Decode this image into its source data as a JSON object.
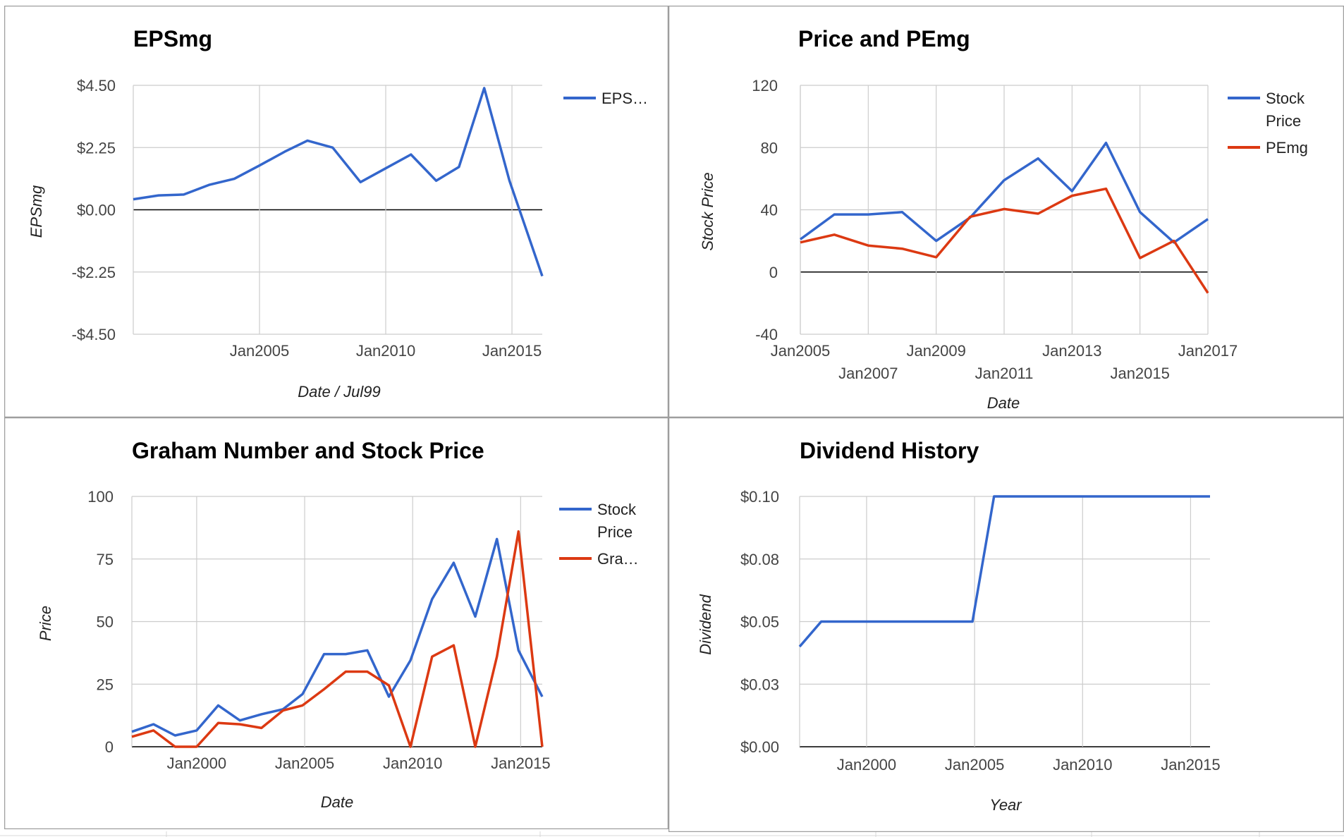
{
  "colors": {
    "blue": "#3366cc",
    "red": "#dc3912",
    "grid": "#cccccc",
    "zero": "#000000"
  },
  "chart_data": [
    {
      "type": "line",
      "title": "EPSmg",
      "xlabel": "Date / Jul99",
      "ylabel": "EPSmg",
      "x_ticks": [
        {
          "value": 2005,
          "label": "Jan2005"
        },
        {
          "value": 2010,
          "label": "Jan2010"
        },
        {
          "value": 2015,
          "label": "Jan2015"
        }
      ],
      "y_ticks": [
        {
          "value": 4.5,
          "label": "$4.50"
        },
        {
          "value": 2.25,
          "label": "$2.25"
        },
        {
          "value": 0,
          "label": "$0.00"
        },
        {
          "value": -2.25,
          "label": "-$2.25"
        },
        {
          "value": -4.5,
          "label": "-$4.50"
        }
      ],
      "xlim": [
        2000.0,
        2016.2
      ],
      "ylim": [
        -4.5,
        4.5
      ],
      "grid": true,
      "legend_position": "right",
      "series": [
        {
          "name": "EPS…",
          "color": "#3366cc",
          "points": [
            [
              2000.0,
              0.38
            ],
            [
              2001.0,
              0.52
            ],
            [
              2002.0,
              0.55
            ],
            [
              2003.0,
              0.9
            ],
            [
              2004.0,
              1.12
            ],
            [
              2005.0,
              1.6
            ],
            [
              2006.0,
              2.1
            ],
            [
              2006.9,
              2.5
            ],
            [
              2007.9,
              2.25
            ],
            [
              2009.0,
              1.0
            ],
            [
              2010.0,
              1.5
            ],
            [
              2011.0,
              2.0
            ],
            [
              2012.0,
              1.05
            ],
            [
              2012.9,
              1.55
            ],
            [
              2013.9,
              4.4
            ],
            [
              2014.9,
              1.05
            ],
            [
              2016.2,
              -2.4
            ]
          ]
        }
      ]
    },
    {
      "type": "line",
      "title": "Price and PEmg",
      "xlabel": "Date",
      "ylabel": "Stock Price",
      "x_ticks_row1": [
        {
          "value": 2005,
          "label": "Jan2005"
        },
        {
          "value": 2009,
          "label": "Jan2009"
        },
        {
          "value": 2013,
          "label": "Jan2013"
        },
        {
          "value": 2017,
          "label": "Jan2017"
        }
      ],
      "x_ticks_row2": [
        {
          "value": 2007,
          "label": "Jan2007"
        },
        {
          "value": 2011,
          "label": "Jan2011"
        },
        {
          "value": 2015,
          "label": "Jan2015"
        }
      ],
      "y_ticks": [
        {
          "value": 120,
          "label": "120"
        },
        {
          "value": 80,
          "label": "80"
        },
        {
          "value": 40,
          "label": "40"
        },
        {
          "value": 0,
          "label": "0"
        },
        {
          "value": -40,
          "label": "-40"
        }
      ],
      "xlim": [
        2005,
        2017
      ],
      "ylim": [
        -40,
        120
      ],
      "grid": true,
      "legend_position": "right",
      "series": [
        {
          "name": "Stock Price",
          "color": "#3366cc",
          "points": [
            [
              2005,
              21
            ],
            [
              2006,
              37
            ],
            [
              2007,
              37
            ],
            [
              2008,
              38.5
            ],
            [
              2009,
              20
            ],
            [
              2010,
              35
            ],
            [
              2011,
              59
            ],
            [
              2012,
              73
            ],
            [
              2013,
              52
            ],
            [
              2014,
              83
            ],
            [
              2015,
              38.5
            ],
            [
              2016,
              19
            ],
            [
              2017,
              34
            ]
          ]
        },
        {
          "name": "PEmg",
          "color": "#dc3912",
          "points": [
            [
              2005,
              19
            ],
            [
              2006,
              24
            ],
            [
              2007,
              17
            ],
            [
              2008,
              15
            ],
            [
              2009,
              9.5
            ],
            [
              2010,
              35.5
            ],
            [
              2011,
              40.5
            ],
            [
              2012,
              37.5
            ],
            [
              2013,
              49
            ],
            [
              2014,
              53.5
            ],
            [
              2015,
              9
            ],
            [
              2016,
              20
            ],
            [
              2017,
              -13.5
            ]
          ]
        }
      ]
    },
    {
      "type": "line",
      "title": "Graham Number and Stock Price",
      "xlabel": "Date",
      "ylabel": "Price",
      "x_ticks": [
        {
          "value": 2000,
          "label": "Jan2000"
        },
        {
          "value": 2005,
          "label": "Jan2005"
        },
        {
          "value": 2010,
          "label": "Jan2010"
        },
        {
          "value": 2015,
          "label": "Jan2015"
        }
      ],
      "y_ticks": [
        {
          "value": 100,
          "label": "100"
        },
        {
          "value": 75,
          "label": "75"
        },
        {
          "value": 50,
          "label": "50"
        },
        {
          "value": 25,
          "label": "25"
        },
        {
          "value": 0,
          "label": "0"
        }
      ],
      "xlim": [
        1997.0,
        2016.0
      ],
      "ylim": [
        0,
        100
      ],
      "grid": true,
      "legend_position": "right",
      "series": [
        {
          "name": "Stock Price",
          "color": "#3366cc",
          "points": [
            [
              1997.0,
              6
            ],
            [
              1998.0,
              9
            ],
            [
              1999.0,
              4.5
            ],
            [
              2000.0,
              6.5
            ],
            [
              2001.0,
              16.5
            ],
            [
              2002.0,
              10.5
            ],
            [
              2003.0,
              13
            ],
            [
              2004.0,
              15
            ],
            [
              2004.9,
              21
            ],
            [
              2005.9,
              37
            ],
            [
              2006.9,
              37
            ],
            [
              2007.9,
              38.5
            ],
            [
              2008.9,
              20
            ],
            [
              2009.9,
              34.5
            ],
            [
              2010.9,
              59
            ],
            [
              2011.9,
              73.5
            ],
            [
              2012.9,
              52
            ],
            [
              2013.9,
              83
            ],
            [
              2014.9,
              38.5
            ],
            [
              2016.0,
              20
            ]
          ]
        },
        {
          "name": "Gra…",
          "color": "#dc3912",
          "points": [
            [
              1997.0,
              4
            ],
            [
              1998.0,
              6.5
            ],
            [
              1999.0,
              0
            ],
            [
              2000.0,
              0
            ],
            [
              2001.0,
              9.5
            ],
            [
              2002.0,
              9
            ],
            [
              2003.0,
              7.5
            ],
            [
              2004.0,
              14.5
            ],
            [
              2004.9,
              16.5
            ],
            [
              2005.9,
              23
            ],
            [
              2006.9,
              30
            ],
            [
              2007.9,
              30
            ],
            [
              2008.9,
              24.5
            ],
            [
              2009.9,
              0
            ],
            [
              2010.9,
              36
            ],
            [
              2011.9,
              40.5
            ],
            [
              2012.9,
              0
            ],
            [
              2013.9,
              36
            ],
            [
              2014.9,
              86
            ],
            [
              2016.0,
              0
            ]
          ]
        }
      ]
    },
    {
      "type": "line",
      "title": "Dividend History",
      "xlabel": "Year",
      "ylabel": "Dividend",
      "x_ticks": [
        {
          "value": 2000,
          "label": "Jan2000"
        },
        {
          "value": 2005,
          "label": "Jan2005"
        },
        {
          "value": 2010,
          "label": "Jan2010"
        },
        {
          "value": 2015,
          "label": "Jan2015"
        }
      ],
      "y_ticks": [
        {
          "value": 0.1,
          "label": "$0.10"
        },
        {
          "value": 0.075,
          "label": "$0.08"
        },
        {
          "value": 0.05,
          "label": "$0.05"
        },
        {
          "value": 0.025,
          "label": "$0.03"
        },
        {
          "value": 0,
          "label": "$0.00"
        }
      ],
      "xlim": [
        1996.9,
        2015.9
      ],
      "ylim": [
        0,
        0.1
      ],
      "grid": true,
      "legend_position": "none",
      "series": [
        {
          "name": "",
          "color": "#3366cc",
          "points": [
            [
              1996.9,
              0.04
            ],
            [
              1997.9,
              0.05
            ],
            [
              2004.9,
              0.05
            ],
            [
              2005.9,
              0.1
            ],
            [
              2015.9,
              0.1
            ]
          ]
        }
      ]
    }
  ]
}
